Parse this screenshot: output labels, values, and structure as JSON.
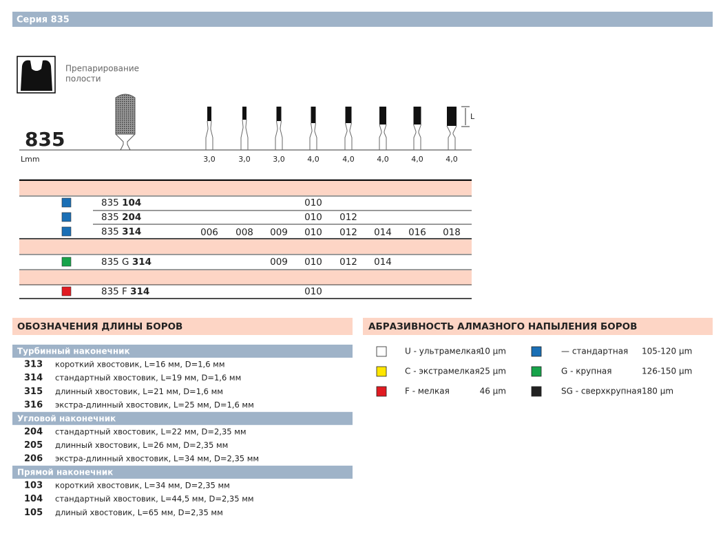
{
  "header": {
    "title": "Серия 835"
  },
  "intro": {
    "icon_label": [
      "Препарирование",
      "полости"
    ],
    "model": "835",
    "length_label": "Lmm",
    "length_marker": "L",
    "lengths": [
      "3,0",
      "3,0",
      "3,0",
      "4,0",
      "4,0",
      "4,0",
      "4,0",
      "4,0"
    ]
  },
  "table": {
    "rows": [
      {
        "color": "#1a6fb5",
        "prefix": "835",
        "code": "104",
        "sizes": [
          null,
          null,
          null,
          "010",
          null,
          null,
          null,
          null
        ]
      },
      {
        "color": "#1a6fb5",
        "prefix": "835",
        "code": "204",
        "sizes": [
          null,
          null,
          null,
          "010",
          "012",
          null,
          null,
          null
        ]
      },
      {
        "color": "#1a6fb5",
        "prefix": "835",
        "code": "314",
        "sizes": [
          "006",
          "008",
          "009",
          "010",
          "012",
          "014",
          "016",
          "018"
        ]
      },
      {
        "color": "#17a34a",
        "prefix": "835 G",
        "code": "314",
        "sizes": [
          null,
          null,
          "009",
          "010",
          "012",
          "014",
          null,
          null
        ]
      },
      {
        "color": "#e11b22",
        "prefix": "835 F",
        "code": "314",
        "sizes": [
          null,
          null,
          null,
          "010",
          null,
          null,
          null,
          null
        ]
      }
    ]
  },
  "lengths_section": {
    "title": "ОБОЗНАЧЕНИЯ ДЛИНЫ БОРОВ",
    "groups": [
      {
        "title": "Турбинный наконечник",
        "items": [
          {
            "code": "313",
            "text": "короткий хвостовик, L=16 мм, D=1,6 мм"
          },
          {
            "code": "314",
            "text": "стандартный хвостовик, L=19 мм, D=1,6 мм"
          },
          {
            "code": "315",
            "text": "длинный хвостовик, L=21 мм, D=1,6 мм"
          },
          {
            "code": "316",
            "text": "экстра-длинный хвостовик, L=25 мм, D=1,6 мм"
          }
        ]
      },
      {
        "title": "Угловой наконечник",
        "items": [
          {
            "code": "204",
            "text": "стандартный хвостовик, L=22 мм, D=2,35 мм"
          },
          {
            "code": "205",
            "text": "длинный хвостовик, L=26 мм, D=2,35 мм"
          },
          {
            "code": "206",
            "text": "экстра-длинный хвостовик, L=34 мм, D=2,35 мм"
          }
        ]
      },
      {
        "title": "Прямой наконечник",
        "items": [
          {
            "code": "103",
            "text": "короткий хвостовик, L=34 мм, D=2,35 мм"
          },
          {
            "code": "104",
            "text": "стандартный хвостовик, L=44,5 мм, D=2,35 мм"
          },
          {
            "code": "105",
            "text": "длиный хвостовик, L=65 мм, D=2,35 мм"
          }
        ]
      }
    ]
  },
  "abrasive_section": {
    "title": "АБРАЗИВНОСТЬ АЛМАЗНОГО НАПЫЛЕНИЯ БОРОВ",
    "columns": [
      [
        {
          "color": "#ffffff",
          "label": "U - ультрамелкая",
          "size": "10 µm"
        },
        {
          "color": "#ffe600",
          "label": "C - экстрамелкая",
          "size": "25 µm"
        },
        {
          "color": "#e11b22",
          "label": "F - мелкая",
          "size": "46 µm"
        }
      ],
      [
        {
          "color": "#1a6fb5",
          "label": "—  стандартная",
          "size": "105-120 µm"
        },
        {
          "color": "#17a34a",
          "label": "G - крупная",
          "size": "126-150 µm"
        },
        {
          "color": "#222222",
          "label": "SG - сверхкрупная",
          "size": "180 µm"
        }
      ]
    ]
  }
}
